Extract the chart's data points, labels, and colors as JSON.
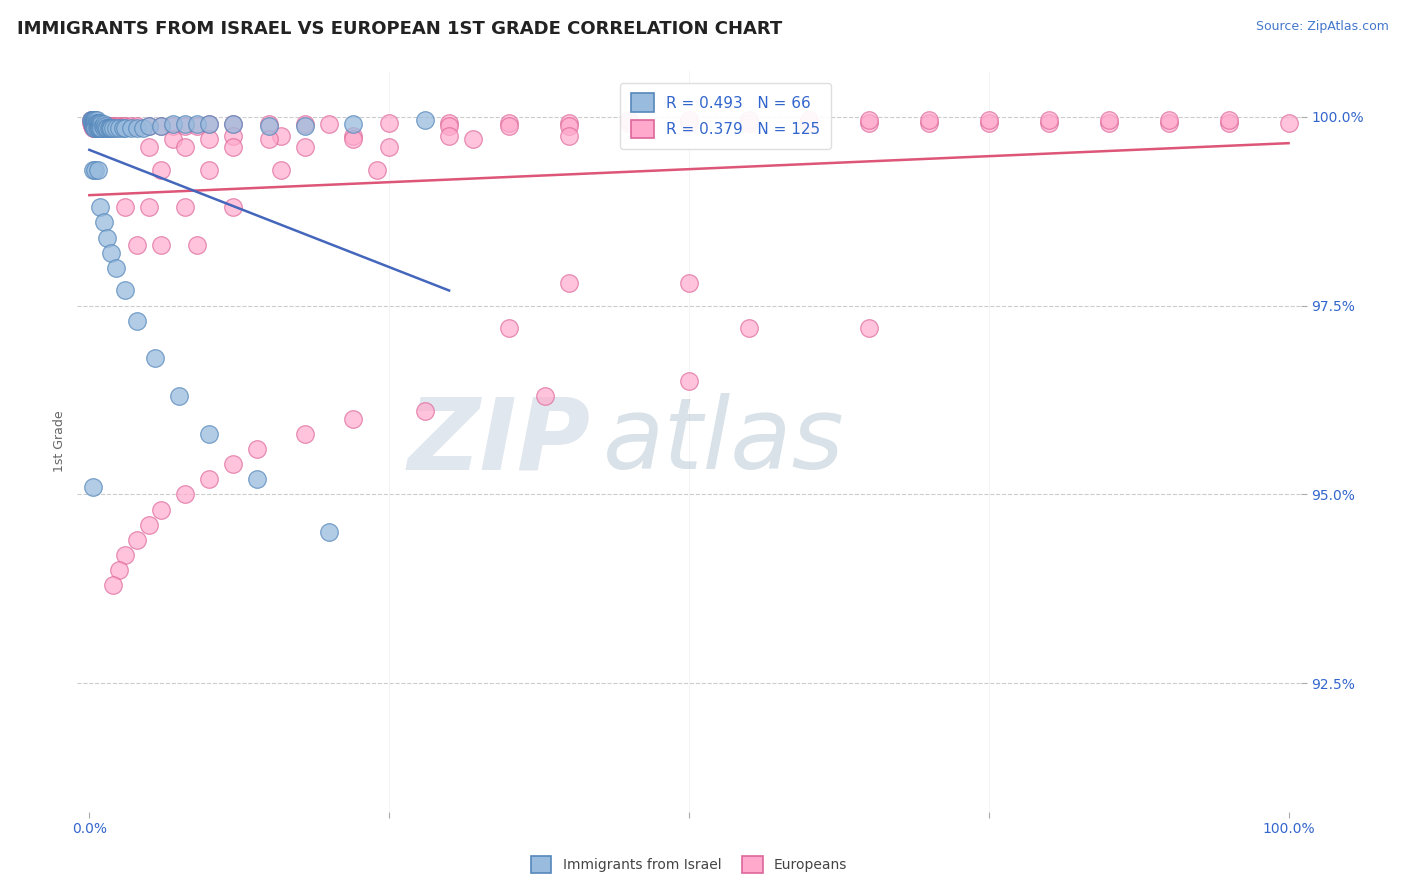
{
  "title": "IMMIGRANTS FROM ISRAEL VS EUROPEAN 1ST GRADE CORRELATION CHART",
  "source": "Source: ZipAtlas.com",
  "ylabel": "1st Grade",
  "ytick_labels": [
    "100.0%",
    "97.5%",
    "95.0%",
    "92.5%"
  ],
  "ytick_values": [
    1.0,
    0.975,
    0.95,
    0.925
  ],
  "xlim": [
    -0.01,
    1.01
  ],
  "ylim": [
    0.908,
    1.006
  ],
  "legend_israel_R": 0.493,
  "legend_israel_N": 66,
  "legend_european_R": 0.379,
  "legend_european_N": 125,
  "color_israel_face": "#99BBDD",
  "color_israel_edge": "#5588BB",
  "color_european_face": "#FFAACC",
  "color_european_edge": "#DD6699",
  "trendline_israel_color": "#4466BB",
  "trendline_european_color": "#DD5577",
  "background_color": "#FFFFFF",
  "watermark_zip": "ZIP",
  "watermark_atlas": "atlas",
  "israel_x": [
    0.001,
    0.002,
    0.002,
    0.003,
    0.003,
    0.003,
    0.004,
    0.004,
    0.004,
    0.004,
    0.005,
    0.005,
    0.005,
    0.005,
    0.006,
    0.006,
    0.006,
    0.007,
    0.007,
    0.007,
    0.008,
    0.008,
    0.008,
    0.009,
    0.009,
    0.01,
    0.01,
    0.011,
    0.012,
    0.012,
    0.013,
    0.014,
    0.015,
    0.016,
    0.017,
    0.018,
    0.02,
    0.022,
    0.025,
    0.028,
    0.03,
    0.035,
    0.04,
    0.045,
    0.05,
    0.06,
    0.07,
    0.08,
    0.09,
    0.1,
    0.12,
    0.15,
    0.18,
    0.22,
    0.28,
    0.003,
    0.005,
    0.007,
    0.009,
    0.012,
    0.015,
    0.018,
    0.022,
    0.03,
    0.04,
    0.055,
    0.075,
    0.1,
    0.14,
    0.2,
    0.003
  ],
  "israel_y": [
    0.9995,
    0.9995,
    0.9992,
    0.9995,
    0.9992,
    0.9988,
    0.9995,
    0.9992,
    0.9988,
    0.9985,
    0.9995,
    0.9992,
    0.9988,
    0.9985,
    0.9995,
    0.9992,
    0.9985,
    0.9992,
    0.9988,
    0.9985,
    0.9992,
    0.9988,
    0.9985,
    0.9992,
    0.9985,
    0.999,
    0.9985,
    0.9988,
    0.999,
    0.9985,
    0.9988,
    0.9985,
    0.9985,
    0.9985,
    0.9985,
    0.9985,
    0.9985,
    0.9985,
    0.9985,
    0.9985,
    0.9985,
    0.9985,
    0.9985,
    0.9985,
    0.9988,
    0.9988,
    0.999,
    0.999,
    0.999,
    0.999,
    0.999,
    0.9988,
    0.9988,
    0.999,
    0.9995,
    0.993,
    0.993,
    0.993,
    0.988,
    0.986,
    0.984,
    0.982,
    0.98,
    0.977,
    0.973,
    0.968,
    0.963,
    0.958,
    0.952,
    0.945,
    0.951
  ],
  "european_x": [
    0.001,
    0.001,
    0.002,
    0.002,
    0.002,
    0.003,
    0.003,
    0.003,
    0.003,
    0.004,
    0.004,
    0.004,
    0.005,
    0.005,
    0.005,
    0.006,
    0.006,
    0.007,
    0.007,
    0.008,
    0.008,
    0.009,
    0.009,
    0.01,
    0.01,
    0.011,
    0.012,
    0.013,
    0.014,
    0.015,
    0.016,
    0.018,
    0.02,
    0.022,
    0.025,
    0.028,
    0.03,
    0.035,
    0.04,
    0.05,
    0.06,
    0.07,
    0.08,
    0.09,
    0.1,
    0.12,
    0.15,
    0.18,
    0.2,
    0.25,
    0.3,
    0.35,
    0.4,
    0.45,
    0.5,
    0.55,
    0.6,
    0.65,
    0.7,
    0.75,
    0.8,
    0.85,
    0.9,
    0.95,
    1.0,
    0.45,
    0.5,
    0.55,
    0.6,
    0.65,
    0.7,
    0.75,
    0.8,
    0.85,
    0.9,
    0.95,
    0.3,
    0.35,
    0.4,
    0.12,
    0.16,
    0.22,
    0.3,
    0.4,
    0.07,
    0.1,
    0.15,
    0.22,
    0.32,
    0.05,
    0.08,
    0.12,
    0.18,
    0.25,
    0.06,
    0.1,
    0.16,
    0.24,
    0.03,
    0.05,
    0.08,
    0.12,
    0.04,
    0.06,
    0.09,
    0.4,
    0.5,
    0.35,
    0.55,
    0.65,
    0.5,
    0.38,
    0.28,
    0.22,
    0.18,
    0.14,
    0.12,
    0.1,
    0.08,
    0.06,
    0.05,
    0.04,
    0.03,
    0.025,
    0.02
  ],
  "european_y": [
    0.9995,
    0.9992,
    0.9995,
    0.9992,
    0.9988,
    0.9995,
    0.9992,
    0.9988,
    0.9985,
    0.9995,
    0.9992,
    0.9985,
    0.9995,
    0.9992,
    0.9985,
    0.9992,
    0.9985,
    0.999,
    0.9985,
    0.999,
    0.9985,
    0.999,
    0.9985,
    0.999,
    0.9985,
    0.9988,
    0.9988,
    0.9988,
    0.9988,
    0.9988,
    0.9988,
    0.9988,
    0.9988,
    0.9988,
    0.9988,
    0.9988,
    0.9988,
    0.9988,
    0.9988,
    0.9988,
    0.9988,
    0.9988,
    0.9988,
    0.9988,
    0.999,
    0.999,
    0.999,
    0.999,
    0.999,
    0.9992,
    0.9992,
    0.9992,
    0.9992,
    0.9992,
    0.9992,
    0.9992,
    0.9992,
    0.9992,
    0.9992,
    0.9992,
    0.9992,
    0.9992,
    0.9992,
    0.9992,
    0.9992,
    0.9995,
    0.9995,
    0.9995,
    0.9995,
    0.9995,
    0.9995,
    0.9995,
    0.9995,
    0.9995,
    0.9995,
    0.9995,
    0.9988,
    0.9988,
    0.9988,
    0.9975,
    0.9975,
    0.9975,
    0.9975,
    0.9975,
    0.997,
    0.997,
    0.997,
    0.997,
    0.997,
    0.996,
    0.996,
    0.996,
    0.996,
    0.996,
    0.993,
    0.993,
    0.993,
    0.993,
    0.988,
    0.988,
    0.988,
    0.988,
    0.983,
    0.983,
    0.983,
    0.978,
    0.978,
    0.972,
    0.972,
    0.972,
    0.965,
    0.963,
    0.961,
    0.96,
    0.958,
    0.956,
    0.954,
    0.952,
    0.95,
    0.948,
    0.946,
    0.944,
    0.942,
    0.94,
    0.938
  ]
}
